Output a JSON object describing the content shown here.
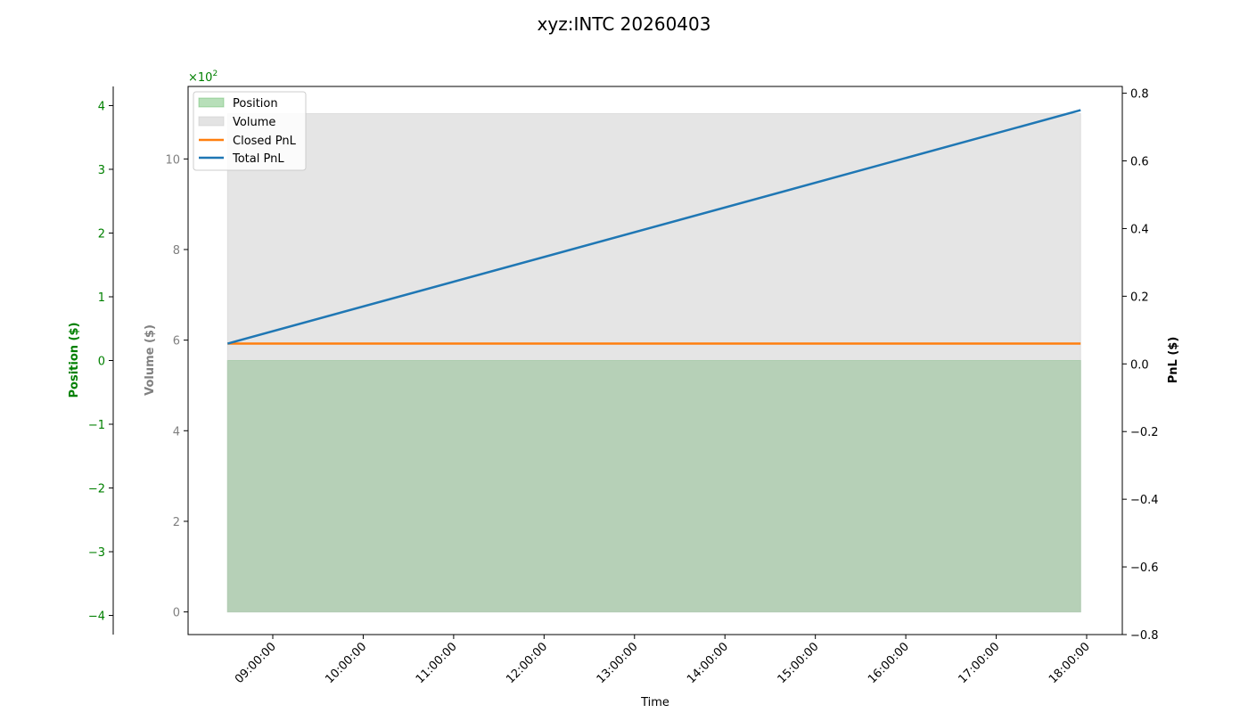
{
  "chart_data": {
    "type": "area",
    "title": "xyz:INTC 20260403",
    "xlabel": "Time",
    "x_ticks": [
      "09:00:00",
      "10:00:00",
      "11:00:00",
      "12:00:00",
      "13:00:00",
      "14:00:00",
      "15:00:00",
      "16:00:00",
      "17:00:00",
      "18:00:00"
    ],
    "x_range": [
      "08:30:00",
      "17:56:00"
    ],
    "axes": {
      "position": {
        "label": "Position ($)",
        "color": "#008000",
        "ylim": [
          -4.3,
          4.3
        ],
        "ticks": [
          -4,
          -3,
          -2,
          -1,
          0,
          1,
          2,
          3,
          4
        ],
        "tick_labels": [
          "−4",
          "−3",
          "−2",
          "−1",
          "0",
          "1",
          "2",
          "3",
          "4"
        ],
        "scale_label": "×10",
        "scale_exp": "2"
      },
      "volume": {
        "label": "Volume ($)",
        "color": "#808080",
        "ylim": [
          -0.5,
          11.6
        ],
        "ticks": [
          0,
          2,
          4,
          6,
          8,
          10
        ],
        "tick_labels": [
          "0",
          "2",
          "4",
          "6",
          "8",
          "10"
        ]
      },
      "pnl": {
        "label": "PnL ($)",
        "color": "#000000",
        "ylim": [
          -0.8,
          0.82
        ],
        "ticks": [
          -0.8,
          -0.6,
          -0.4,
          -0.2,
          0.0,
          0.2,
          0.4,
          0.6,
          0.8
        ],
        "tick_labels": [
          "−0.8",
          "−0.6",
          "−0.4",
          "−0.2",
          "0.0",
          "0.2",
          "0.4",
          "0.6",
          "0.8"
        ]
      }
    },
    "series": [
      {
        "name": "Position",
        "kind": "area",
        "axis": "position",
        "color": "#4caf50",
        "x": [
          "08:30:00",
          "17:56:00"
        ],
        "y": [
          0,
          0
        ]
      },
      {
        "name": "Volume",
        "kind": "area",
        "axis": "volume",
        "color": "#cccccc",
        "x": [
          "08:30:00",
          "17:56:00"
        ],
        "y": [
          11,
          11
        ]
      },
      {
        "name": "Closed PnL",
        "kind": "line",
        "axis": "pnl",
        "color": "#ff7f0e",
        "x": [
          "08:30:00",
          "17:56:00"
        ],
        "y": [
          0.06,
          0.06
        ]
      },
      {
        "name": "Total PnL",
        "kind": "line",
        "axis": "pnl",
        "color": "#1f77b4",
        "x": [
          "08:30:00",
          "17:56:00"
        ],
        "y": [
          0.06,
          0.75
        ]
      }
    ],
    "legend": {
      "placement": "top-left",
      "items": [
        "Position",
        "Volume",
        "Closed PnL",
        "Total PnL"
      ]
    }
  }
}
